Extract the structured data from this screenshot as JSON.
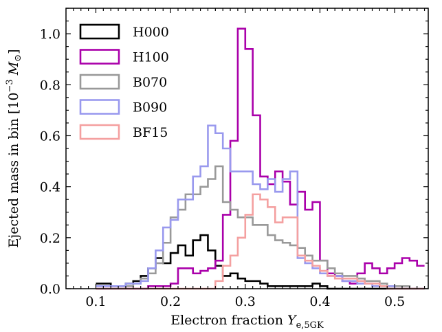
{
  "chart_data": {
    "type": "histogram",
    "xlabel_text": "Electron fraction ",
    "xlabel_var": "Y",
    "xlabel_sub": "e,5GK",
    "ylabel_text": "Ejected mass in bin [10",
    "ylabel_exp": "−3",
    "ylabel_unit": "M",
    "ylabel_sun": "⊙",
    "ylabel_close": "]",
    "xlim": [
      0.06,
      0.545
    ],
    "ylim": [
      0.0,
      1.1
    ],
    "xticks": [
      0.1,
      0.2,
      0.3,
      0.4,
      0.5
    ],
    "xtick_labels": [
      "0.1",
      "0.2",
      "0.3",
      "0.4",
      "0.5"
    ],
    "yticks": [
      0.0,
      0.2,
      0.4,
      0.6,
      0.8,
      1.0
    ],
    "ytick_labels": [
      "0.0",
      "0.2",
      "0.4",
      "0.6",
      "0.8",
      "1.0"
    ],
    "bin_start": 0.1,
    "bin_width": 0.01,
    "legend_position": "top-left",
    "series": [
      {
        "name": "H000",
        "color": "#000000",
        "values": [
          0.02,
          0.02,
          0.01,
          0.01,
          0.02,
          0.03,
          0.05,
          0.08,
          0.12,
          0.1,
          0.14,
          0.17,
          0.13,
          0.19,
          0.21,
          0.15,
          0.09,
          0.05,
          0.06,
          0.04,
          0.03,
          0.03,
          0.02,
          0.01,
          0.01,
          0.01,
          0.01,
          0.01,
          0.01,
          0.02,
          0.01,
          0.0,
          0.0,
          0.0,
          0.0,
          0.0,
          0.0,
          0.0,
          0.0,
          0.0,
          0.0,
          0.0,
          0.0
        ]
      },
      {
        "name": "H100",
        "color": "#aa00aa",
        "values": [
          0.0,
          0.0,
          0.0,
          0.0,
          0.0,
          0.0,
          0.0,
          0.01,
          0.01,
          0.01,
          0.02,
          0.08,
          0.08,
          0.06,
          0.07,
          0.08,
          0.11,
          0.29,
          0.58,
          1.02,
          0.94,
          0.68,
          0.44,
          0.41,
          0.46,
          0.42,
          0.33,
          0.38,
          0.31,
          0.34,
          0.11,
          0.06,
          0.05,
          0.03,
          0.02,
          0.06,
          0.1,
          0.08,
          0.06,
          0.08,
          0.1,
          0.12,
          0.11,
          0.09
        ]
      },
      {
        "name": "B070",
        "color": "#999999",
        "values": [
          0.0,
          0.0,
          0.0,
          0.0,
          0.01,
          0.02,
          0.04,
          0.06,
          0.1,
          0.18,
          0.28,
          0.31,
          0.37,
          0.37,
          0.4,
          0.43,
          0.48,
          0.34,
          0.31,
          0.28,
          0.28,
          0.25,
          0.25,
          0.21,
          0.19,
          0.18,
          0.17,
          0.16,
          0.13,
          0.11,
          0.11,
          0.08,
          0.06,
          0.05,
          0.05,
          0.04,
          0.03,
          0.03,
          0.02,
          0.01,
          0.01,
          0.01,
          0.0,
          0.0
        ]
      },
      {
        "name": "B090",
        "color": "#9999ee",
        "values": [
          0.01,
          0.01,
          0.01,
          0.01,
          0.02,
          0.02,
          0.03,
          0.08,
          0.15,
          0.24,
          0.27,
          0.35,
          0.35,
          0.44,
          0.48,
          0.64,
          0.61,
          0.55,
          0.46,
          0.46,
          0.46,
          0.41,
          0.39,
          0.43,
          0.38,
          0.43,
          0.46,
          0.12,
          0.1,
          0.08,
          0.06,
          0.05,
          0.05,
          0.03,
          0.03,
          0.02,
          0.02,
          0.01,
          0.01,
          0.01,
          0.0,
          0.0,
          0.0,
          0.0
        ]
      },
      {
        "name": "BF15",
        "color": "#f4a0a0",
        "values": [
          0.0,
          0.0,
          0.0,
          0.0,
          0.0,
          0.0,
          0.0,
          0.0,
          0.0,
          0.0,
          0.0,
          0.0,
          0.0,
          0.0,
          0.0,
          0.0,
          0.03,
          0.09,
          0.13,
          0.2,
          0.29,
          0.37,
          0.35,
          0.32,
          0.26,
          0.28,
          0.28,
          0.13,
          0.11,
          0.09,
          0.07,
          0.05,
          0.04,
          0.04,
          0.04,
          0.03,
          0.02,
          0.02,
          0.01,
          0.0,
          0.0,
          0.0,
          0.0,
          0.0
        ]
      }
    ]
  }
}
